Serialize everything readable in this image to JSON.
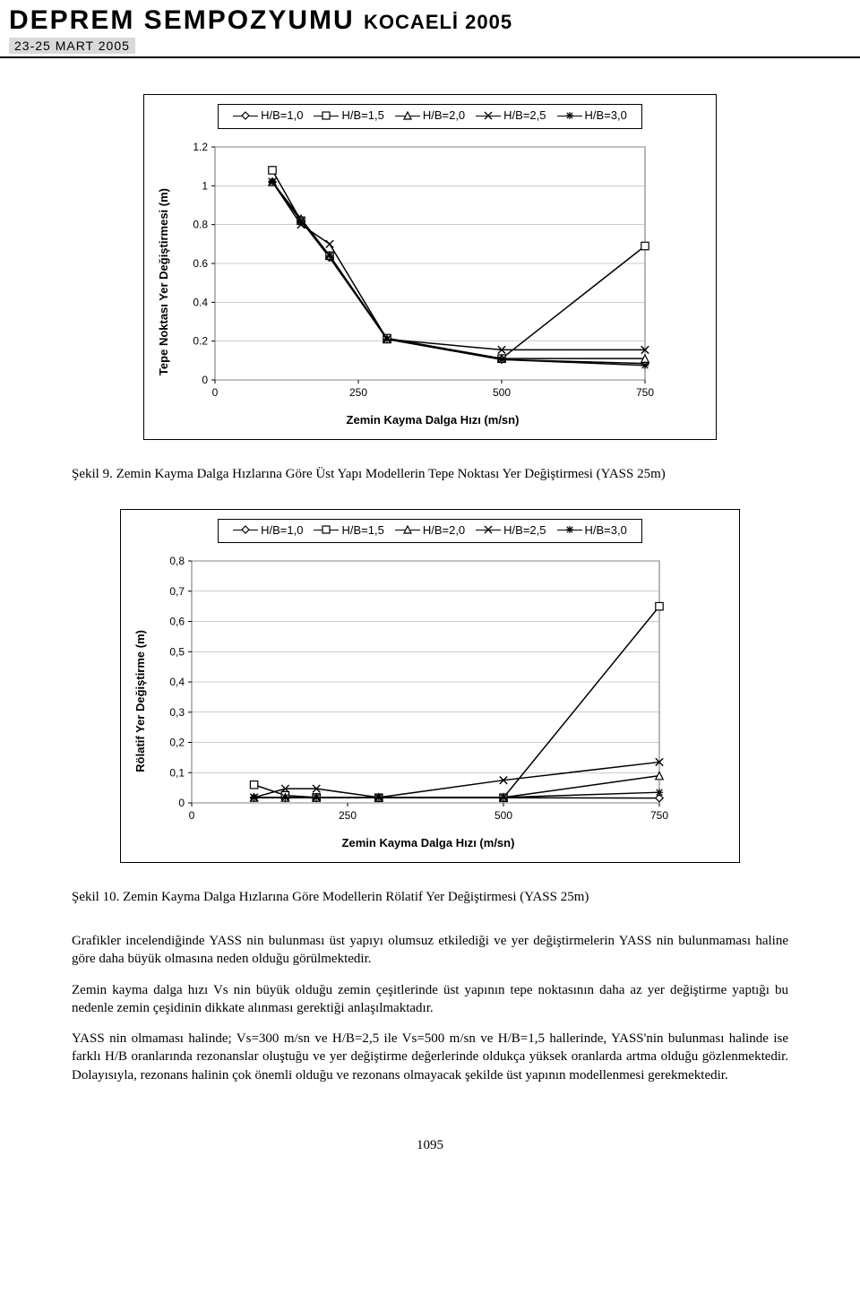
{
  "banner": {
    "title": "DEPREM SEMPOZYUMU",
    "subtitle_right": "KOCAELİ 2005",
    "date_strip": "23-25 MART 2005"
  },
  "legend": {
    "items": [
      {
        "label": "H/B=1,0",
        "marker": "diamond",
        "color": "#000000"
      },
      {
        "label": "H/B=1,5",
        "marker": "square",
        "color": "#000000"
      },
      {
        "label": "H/B=2,0",
        "marker": "triangle",
        "color": "#000000"
      },
      {
        "label": "H/B=2,5",
        "marker": "x",
        "color": "#000000"
      },
      {
        "label": "H/B=3,0",
        "marker": "star",
        "color": "#000000"
      }
    ]
  },
  "chart_a": {
    "type": "line",
    "ylabel": "Tepe Noktası Yer Değiştirmesi (m)",
    "xlabel": "Zemin Kayma Dalga Hızı (m/sn)",
    "xlim": [
      0,
      750
    ],
    "ylim": [
      0,
      1.2
    ],
    "xtick_step": 250,
    "ytick_step": 0.2,
    "decimal_sep": ".",
    "y_tick_labels": [
      "0",
      "0.2",
      "0.4",
      "0.6",
      "0.8",
      "1",
      "1.2"
    ],
    "x_tick_labels": [
      "0",
      "250",
      "500",
      "750"
    ],
    "plot_bg": "#ffffff",
    "grid_color": "#999999",
    "series": [
      {
        "name": "H/B=1,0",
        "marker": "diamond",
        "color": "#000000",
        "x": [
          100,
          150,
          200,
          300,
          500,
          750
        ],
        "y": [
          1.02,
          0.82,
          0.63,
          0.21,
          0.105,
          0.085
        ]
      },
      {
        "name": "H/B=1,5",
        "marker": "square",
        "color": "#000000",
        "x": [
          100,
          150,
          200,
          300,
          500,
          750
        ],
        "y": [
          1.08,
          0.82,
          0.64,
          0.215,
          0.11,
          0.69
        ]
      },
      {
        "name": "H/B=2,0",
        "marker": "triangle",
        "color": "#000000",
        "x": [
          100,
          150,
          200,
          300,
          500,
          750
        ],
        "y": [
          1.02,
          0.83,
          0.64,
          0.21,
          0.11,
          0.11
        ]
      },
      {
        "name": "H/B=2,5",
        "marker": "x",
        "color": "#000000",
        "x": [
          100,
          150,
          200,
          300,
          500,
          750
        ],
        "y": [
          1.02,
          0.8,
          0.7,
          0.21,
          0.155,
          0.155
        ]
      },
      {
        "name": "H/B=3,0",
        "marker": "star",
        "color": "#000000",
        "x": [
          100,
          150,
          200,
          300,
          500,
          750
        ],
        "y": [
          1.02,
          0.82,
          0.64,
          0.21,
          0.105,
          0.075
        ]
      }
    ]
  },
  "caption_a": {
    "label": "Şekil 9.",
    "desc": "  Zemin Kayma Dalga Hızlarına Göre Üst Yapı Modellerin Tepe Noktası Yer Değiştirmesi (YASS 25m)"
  },
  "chart_b": {
    "type": "line",
    "ylabel": "Rölatif Yer Değiştirme (m)",
    "xlabel": "Zemin Kayma Dalga Hızı (m/sn)",
    "xlim": [
      0,
      750
    ],
    "ylim": [
      0,
      0.8
    ],
    "xtick_step": 250,
    "ytick_step": 0.1,
    "decimal_sep": ",",
    "y_tick_labels": [
      "0",
      "0,1",
      "0,2",
      "0,3",
      "0,4",
      "0,5",
      "0,6",
      "0,7",
      "0,8"
    ],
    "x_tick_labels": [
      "0",
      "250",
      "500",
      "750"
    ],
    "plot_bg": "#ffffff",
    "grid_color": "#999999",
    "series": [
      {
        "name": "H/B=1,0",
        "marker": "diamond",
        "color": "#000000",
        "x": [
          100,
          150,
          200,
          300,
          500,
          750
        ],
        "y": [
          0.017,
          0.017,
          0.017,
          0.017,
          0.017,
          0.016
        ]
      },
      {
        "name": "H/B=1,5",
        "marker": "square",
        "color": "#000000",
        "x": [
          100,
          150,
          200,
          300,
          500,
          750
        ],
        "y": [
          0.06,
          0.025,
          0.018,
          0.017,
          0.017,
          0.65
        ]
      },
      {
        "name": "H/B=2,0",
        "marker": "triangle",
        "color": "#000000",
        "x": [
          100,
          150,
          200,
          300,
          500,
          750
        ],
        "y": [
          0.018,
          0.018,
          0.018,
          0.018,
          0.018,
          0.09
        ]
      },
      {
        "name": "H/B=2,5",
        "marker": "x",
        "color": "#000000",
        "x": [
          100,
          150,
          200,
          300,
          500,
          750
        ],
        "y": [
          0.018,
          0.047,
          0.047,
          0.018,
          0.075,
          0.135
        ]
      },
      {
        "name": "H/B=3,0",
        "marker": "star",
        "color": "#000000",
        "x": [
          100,
          150,
          200,
          300,
          500,
          750
        ],
        "y": [
          0.018,
          0.018,
          0.018,
          0.018,
          0.018,
          0.035
        ]
      }
    ]
  },
  "caption_b": {
    "label": "Şekil 10.",
    "desc": "   Zemin Kayma Dalga Hızlarına Göre Modellerin Rölatif Yer Değiştirmesi (YASS 25m)"
  },
  "paragraphs": [
    "Grafikler incelendiğinde YASS nin bulunması üst yapıyı olumsuz etkilediği ve yer değiştirmelerin YASS nin bulunmaması haline göre daha büyük olmasına neden olduğu görülmektedir.",
    "Zemin kayma dalga hızı Vs nin büyük olduğu zemin çeşitlerinde üst yapının tepe noktasının daha az yer değiştirme yaptığı bu nedenle zemin çeşidinin dikkate alınması gerektiği anlaşılmaktadır.",
    "YASS nin olmaması halinde; Vs=300 m/sn ve H/B=2,5 ile Vs=500 m/sn ve H/B=1,5 hallerinde, YASS'nin bulunması halinde ise farklı H/B oranlarında rezonanslar oluştuğu ve yer değiştirme değerlerinde oldukça yüksek oranlarda artma olduğu gözlenmektedir. Dolayısıyla, rezonans halinin çok önemli olduğu ve rezonans olmayacak şekilde üst yapının modellenmesi gerekmektedir."
  ],
  "page_number": "1095",
  "plot_geometry": {
    "a": {
      "pw": 480,
      "ph": 260,
      "ml": 44
    },
    "b": {
      "pw": 522,
      "ph": 270,
      "ml": 44
    }
  }
}
